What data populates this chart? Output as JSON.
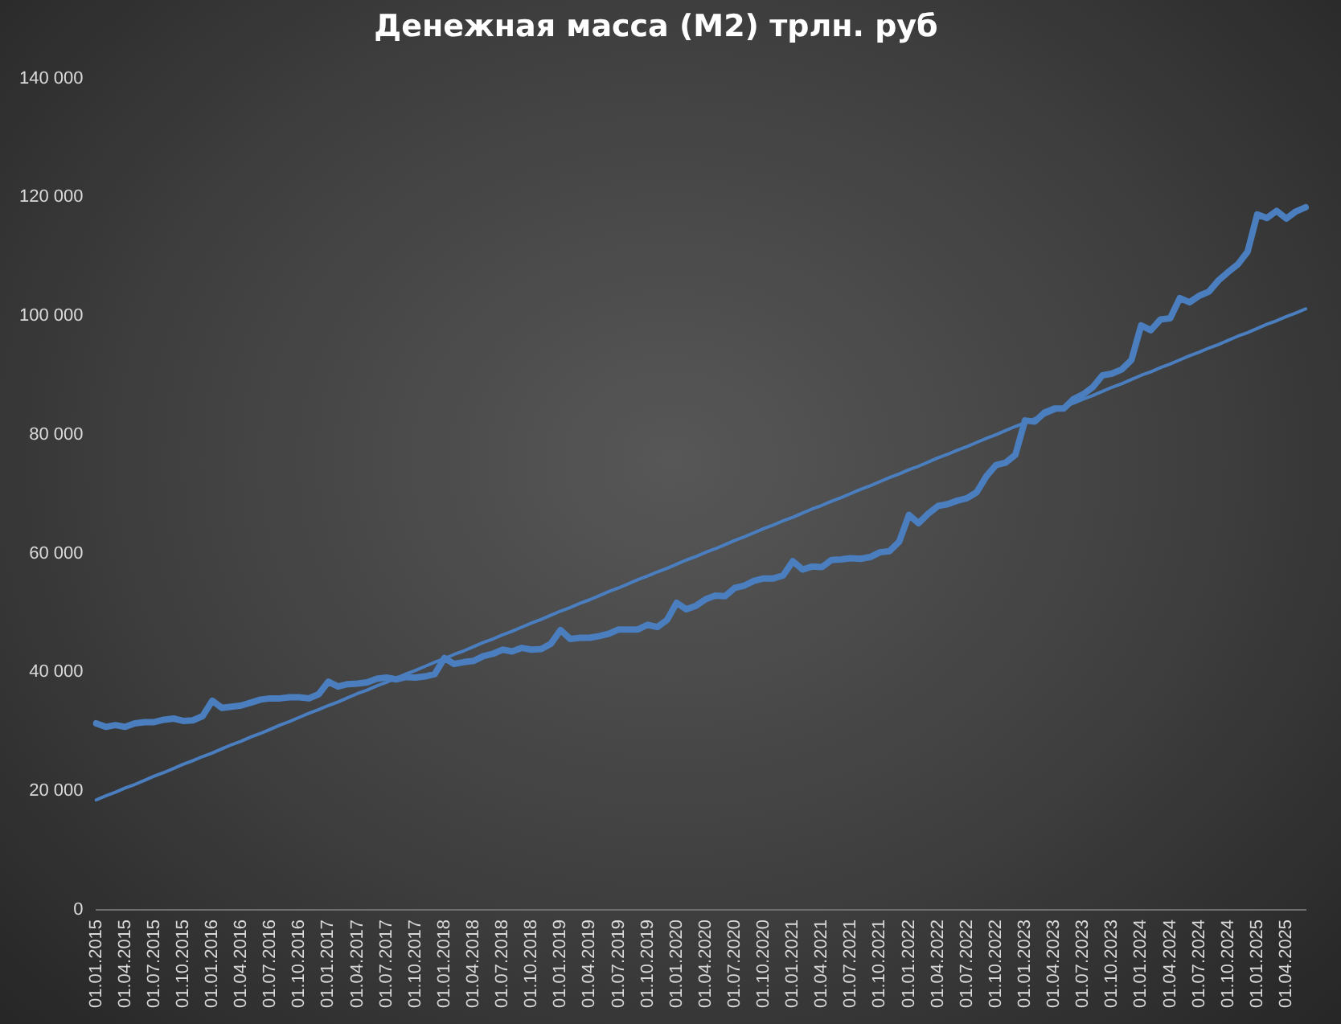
{
  "chart_data": {
    "type": "line",
    "title": "Денежная масса (М2) трлн. руб",
    "categories": [
      "01.01.2015",
      null,
      null,
      "01.04.2015",
      null,
      null,
      "01.07.2015",
      null,
      null,
      "01.10.2015",
      null,
      null,
      "01.01.2016",
      null,
      null,
      "01.04.2016",
      null,
      null,
      "01.07.2016",
      null,
      null,
      "01.10.2016",
      null,
      null,
      "01.01.2017",
      null,
      null,
      "01.04.2017",
      null,
      null,
      "01.07.2017",
      null,
      null,
      "01.10.2017",
      null,
      null,
      "01.01.2018",
      null,
      null,
      "01.04.2018",
      null,
      null,
      "01.07.2018",
      null,
      null,
      "01.10.2018",
      null,
      null,
      "01.01.2019",
      null,
      null,
      "01.04.2019",
      null,
      null,
      "01.07.2019",
      null,
      null,
      "01.10.2019",
      null,
      null,
      "01.01.2020",
      null,
      null,
      "01.04.2020",
      null,
      null,
      "01.07.2020",
      null,
      null,
      "01.10.2020",
      null,
      null,
      "01.01.2021",
      null,
      null,
      "01.04.2021",
      null,
      null,
      "01.07.2021",
      null,
      null,
      "01.10.2021",
      null,
      null,
      "01.01.2022",
      null,
      null,
      "01.04.2022",
      null,
      null,
      "01.07.2022",
      null,
      null,
      "01.10.2022",
      null,
      null,
      "01.01.2023",
      null,
      null,
      "01.04.2023",
      null,
      null,
      "01.07.2023",
      null,
      null,
      "01.10.2023",
      null,
      null,
      "01.01.2024",
      null,
      null,
      "01.04.2024",
      null,
      null,
      "01.07.2024",
      null,
      null,
      "01.10.2024",
      null,
      null,
      "01.01.2025",
      null,
      null,
      "01.04.2025",
      null,
      null
    ],
    "series": [
      {
        "color": "#4a7ebf",
        "values": [
          31400,
          30800,
          31100,
          30800,
          31400,
          31600,
          31600,
          32000,
          32200,
          31800,
          31900,
          32600,
          35200,
          34000,
          34200,
          34400,
          34900,
          35400,
          35600,
          35600,
          35800,
          35800,
          35600,
          36300,
          38400,
          37600,
          38000,
          38100,
          38300,
          38900,
          39100,
          38800,
          39200,
          39100,
          39300,
          39700,
          42400,
          41400,
          41700,
          41900,
          42700,
          43100,
          43800,
          43500,
          44100,
          43800,
          43900,
          44800,
          47100,
          45600,
          45800,
          45800,
          46100,
          46500,
          47200,
          47200,
          47200,
          48000,
          47600,
          48800,
          51700,
          50600,
          51200,
          52300,
          52900,
          52800,
          54200,
          54600,
          55400,
          55800,
          55800,
          56300,
          58700,
          57300,
          57800,
          57700,
          58900,
          59000,
          59200,
          59100,
          59400,
          60200,
          60400,
          62000,
          66500,
          65100,
          66700,
          68000,
          68300,
          68900,
          69300,
          70300,
          73000,
          74900,
          75300,
          76600,
          82400,
          82200,
          83700,
          84400,
          84400,
          86000,
          86800,
          88000,
          90000,
          90300,
          91000,
          92600,
          98400,
          97600,
          99400,
          99600,
          103000,
          102300,
          103400,
          104100,
          106000,
          107400,
          108700,
          110800,
          117100,
          116500,
          117700,
          116400,
          117600,
          118300
        ]
      },
      {
        "color": "#4a7ebf",
        "values": [
          18500,
          19200,
          19800,
          20500,
          21100,
          21800,
          22500,
          23100,
          23800,
          24500,
          25100,
          25800,
          26400,
          27100,
          27800,
          28400,
          29100,
          29700,
          30400,
          31100,
          31700,
          32400,
          33100,
          33700,
          34400,
          35000,
          35700,
          36400,
          37000,
          37700,
          38300,
          39000,
          39700,
          40300,
          41000,
          41700,
          42300,
          43000,
          43600,
          44300,
          45000,
          45600,
          46300,
          46900,
          47600,
          48300,
          48900,
          49600,
          50300,
          50900,
          51600,
          52200,
          52900,
          53600,
          54200,
          54900,
          55600,
          56200,
          56900,
          57500,
          58200,
          58900,
          59500,
          60200,
          60800,
          61500,
          62200,
          62800,
          63500,
          64200,
          64800,
          65500,
          66100,
          66800,
          67500,
          68100,
          68800,
          69400,
          70100,
          70800,
          71400,
          72100,
          72800,
          73400,
          74100,
          74700,
          75400,
          76100,
          76700,
          77400,
          78000,
          78700,
          79400,
          80000,
          80700,
          81400,
          82000,
          82700,
          83300,
          84000,
          84700,
          85300,
          86000,
          86600,
          87300,
          88000,
          88600,
          89300,
          90000,
          90600,
          91300,
          91900,
          92600,
          93300,
          93900,
          94600,
          95200,
          95900,
          96600,
          97200,
          97900,
          98600,
          99200,
          99900,
          100500,
          101200
        ]
      }
    ],
    "ylim": [
      0,
      140000
    ],
    "yticks": [
      0,
      {
        "value": 20000,
        "label": "20 000"
      },
      {
        "value": 40000,
        "label": "40 000"
      },
      {
        "value": 60000,
        "label": "60 000"
      },
      {
        "value": 80000,
        "label": "80 000"
      },
      {
        "value": 100000,
        "label": "100 000"
      },
      {
        "value": 120000,
        "label": "120 000"
      },
      {
        "value": 140000,
        "label": "140 000"
      }
    ],
    "grid": false,
    "legend": false
  }
}
